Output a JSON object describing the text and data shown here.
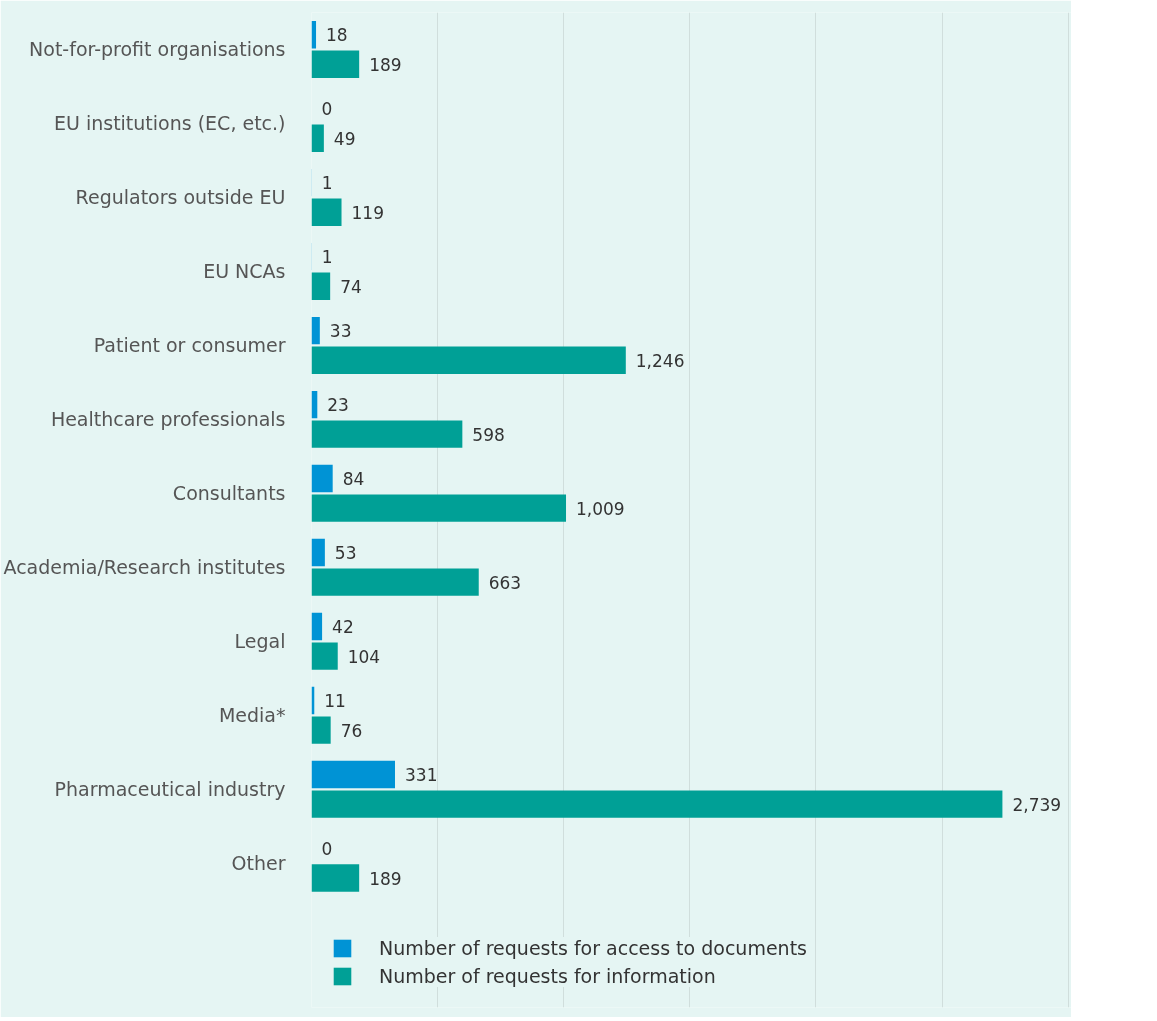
{
  "chart_data": {
    "type": "bar",
    "orientation": "horizontal",
    "categories": [
      "Not-for-profit organisations",
      "EU institutions (EC, etc.)",
      "Regulators outside EU",
      "EU NCAs",
      "Patient or consumer",
      "Healthcare professionals",
      "Consultants",
      "Academia/Research institutes",
      "Legal",
      "Media*",
      "Pharmaceutical industry",
      "Other"
    ],
    "series": [
      {
        "name": "Number of requests for access to documents",
        "color": "#0093d5",
        "values": [
          18,
          0,
          1,
          1,
          33,
          23,
          84,
          53,
          42,
          11,
          331,
          0
        ],
        "value_labels": [
          "18",
          "0",
          "1",
          "1",
          "33",
          "23",
          "84",
          "53",
          "42",
          "11",
          "331",
          "0"
        ]
      },
      {
        "name": "Number of requests for information",
        "color": "#00a096",
        "values": [
          189,
          49,
          119,
          74,
          1246,
          598,
          1009,
          663,
          104,
          76,
          2739,
          189
        ],
        "value_labels": [
          "189",
          "49",
          "119",
          "74",
          "1,246",
          "598",
          "1,009",
          "663",
          "104",
          "76",
          "2,739",
          "189"
        ]
      }
    ],
    "tick_labels": "y",
    "grid": "x",
    "legend": "bottom"
  }
}
